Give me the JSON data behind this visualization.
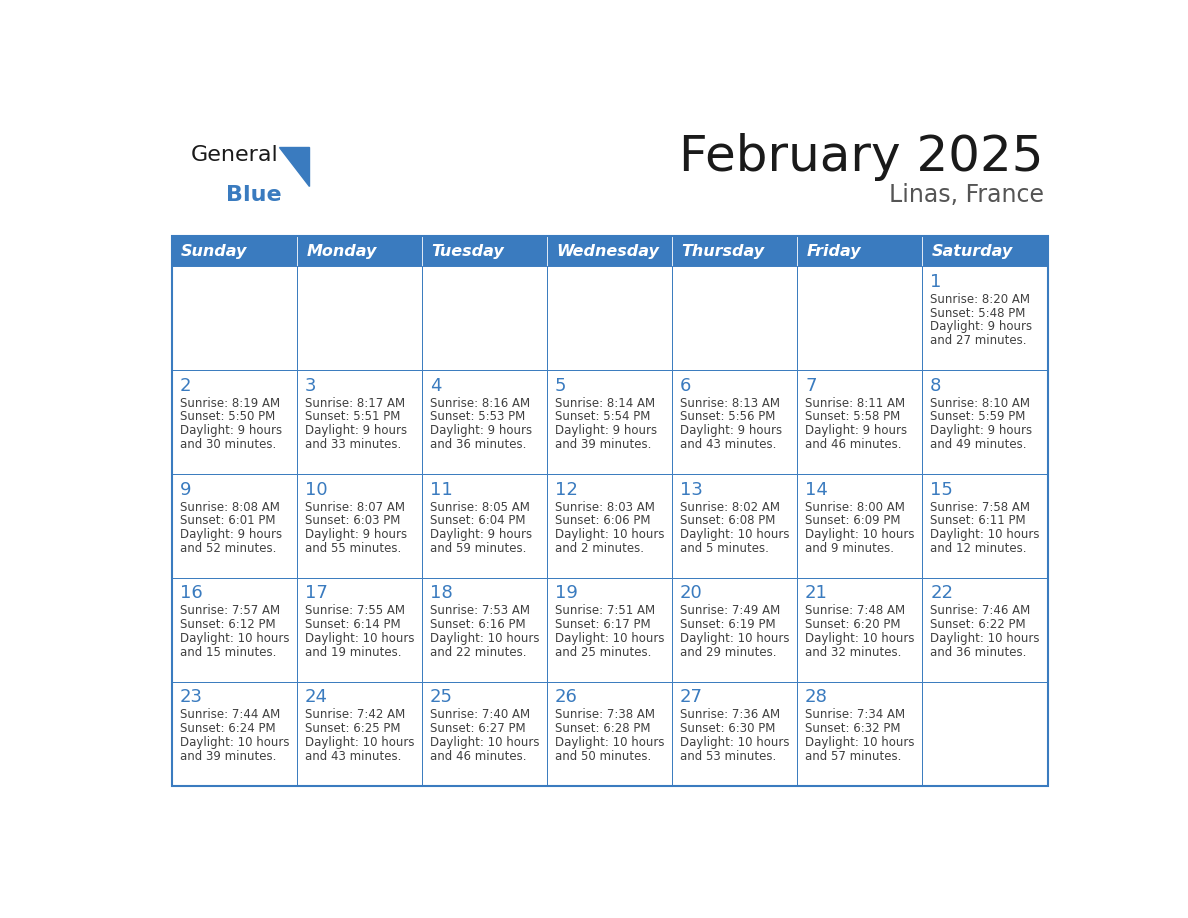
{
  "title": "February 2025",
  "subtitle": "Linas, France",
  "days_of_week": [
    "Sunday",
    "Monday",
    "Tuesday",
    "Wednesday",
    "Thursday",
    "Friday",
    "Saturday"
  ],
  "header_bg": "#3a7bbf",
  "header_text": "#ffffff",
  "cell_bg": "#ffffff",
  "cell_border": "#3a7bbf",
  "day_num_color": "#3a7bbf",
  "cell_text_color": "#404040",
  "title_color": "#1a1a1a",
  "subtitle_color": "#555555",
  "logo_general_color": "#1a1a1a",
  "logo_blue_color": "#3a7bbf",
  "calendar": [
    [
      null,
      null,
      null,
      null,
      null,
      null,
      {
        "day": 1,
        "sunrise": "8:20 AM",
        "sunset": "5:48 PM",
        "daylight": "9 hours and 27 minutes."
      }
    ],
    [
      {
        "day": 2,
        "sunrise": "8:19 AM",
        "sunset": "5:50 PM",
        "daylight": "9 hours and 30 minutes."
      },
      {
        "day": 3,
        "sunrise": "8:17 AM",
        "sunset": "5:51 PM",
        "daylight": "9 hours and 33 minutes."
      },
      {
        "day": 4,
        "sunrise": "8:16 AM",
        "sunset": "5:53 PM",
        "daylight": "9 hours and 36 minutes."
      },
      {
        "day": 5,
        "sunrise": "8:14 AM",
        "sunset": "5:54 PM",
        "daylight": "9 hours and 39 minutes."
      },
      {
        "day": 6,
        "sunrise": "8:13 AM",
        "sunset": "5:56 PM",
        "daylight": "9 hours and 43 minutes."
      },
      {
        "day": 7,
        "sunrise": "8:11 AM",
        "sunset": "5:58 PM",
        "daylight": "9 hours and 46 minutes."
      },
      {
        "day": 8,
        "sunrise": "8:10 AM",
        "sunset": "5:59 PM",
        "daylight": "9 hours and 49 minutes."
      }
    ],
    [
      {
        "day": 9,
        "sunrise": "8:08 AM",
        "sunset": "6:01 PM",
        "daylight": "9 hours and 52 minutes."
      },
      {
        "day": 10,
        "sunrise": "8:07 AM",
        "sunset": "6:03 PM",
        "daylight": "9 hours and 55 minutes."
      },
      {
        "day": 11,
        "sunrise": "8:05 AM",
        "sunset": "6:04 PM",
        "daylight": "9 hours and 59 minutes."
      },
      {
        "day": 12,
        "sunrise": "8:03 AM",
        "sunset": "6:06 PM",
        "daylight": "10 hours and 2 minutes."
      },
      {
        "day": 13,
        "sunrise": "8:02 AM",
        "sunset": "6:08 PM",
        "daylight": "10 hours and 5 minutes."
      },
      {
        "day": 14,
        "sunrise": "8:00 AM",
        "sunset": "6:09 PM",
        "daylight": "10 hours and 9 minutes."
      },
      {
        "day": 15,
        "sunrise": "7:58 AM",
        "sunset": "6:11 PM",
        "daylight": "10 hours and 12 minutes."
      }
    ],
    [
      {
        "day": 16,
        "sunrise": "7:57 AM",
        "sunset": "6:12 PM",
        "daylight": "10 hours and 15 minutes."
      },
      {
        "day": 17,
        "sunrise": "7:55 AM",
        "sunset": "6:14 PM",
        "daylight": "10 hours and 19 minutes."
      },
      {
        "day": 18,
        "sunrise": "7:53 AM",
        "sunset": "6:16 PM",
        "daylight": "10 hours and 22 minutes."
      },
      {
        "day": 19,
        "sunrise": "7:51 AM",
        "sunset": "6:17 PM",
        "daylight": "10 hours and 25 minutes."
      },
      {
        "day": 20,
        "sunrise": "7:49 AM",
        "sunset": "6:19 PM",
        "daylight": "10 hours and 29 minutes."
      },
      {
        "day": 21,
        "sunrise": "7:48 AM",
        "sunset": "6:20 PM",
        "daylight": "10 hours and 32 minutes."
      },
      {
        "day": 22,
        "sunrise": "7:46 AM",
        "sunset": "6:22 PM",
        "daylight": "10 hours and 36 minutes."
      }
    ],
    [
      {
        "day": 23,
        "sunrise": "7:44 AM",
        "sunset": "6:24 PM",
        "daylight": "10 hours and 39 minutes."
      },
      {
        "day": 24,
        "sunrise": "7:42 AM",
        "sunset": "6:25 PM",
        "daylight": "10 hours and 43 minutes."
      },
      {
        "day": 25,
        "sunrise": "7:40 AM",
        "sunset": "6:27 PM",
        "daylight": "10 hours and 46 minutes."
      },
      {
        "day": 26,
        "sunrise": "7:38 AM",
        "sunset": "6:28 PM",
        "daylight": "10 hours and 50 minutes."
      },
      {
        "day": 27,
        "sunrise": "7:36 AM",
        "sunset": "6:30 PM",
        "daylight": "10 hours and 53 minutes."
      },
      {
        "day": 28,
        "sunrise": "7:34 AM",
        "sunset": "6:32 PM",
        "daylight": "10 hours and 57 minutes."
      },
      null
    ]
  ]
}
